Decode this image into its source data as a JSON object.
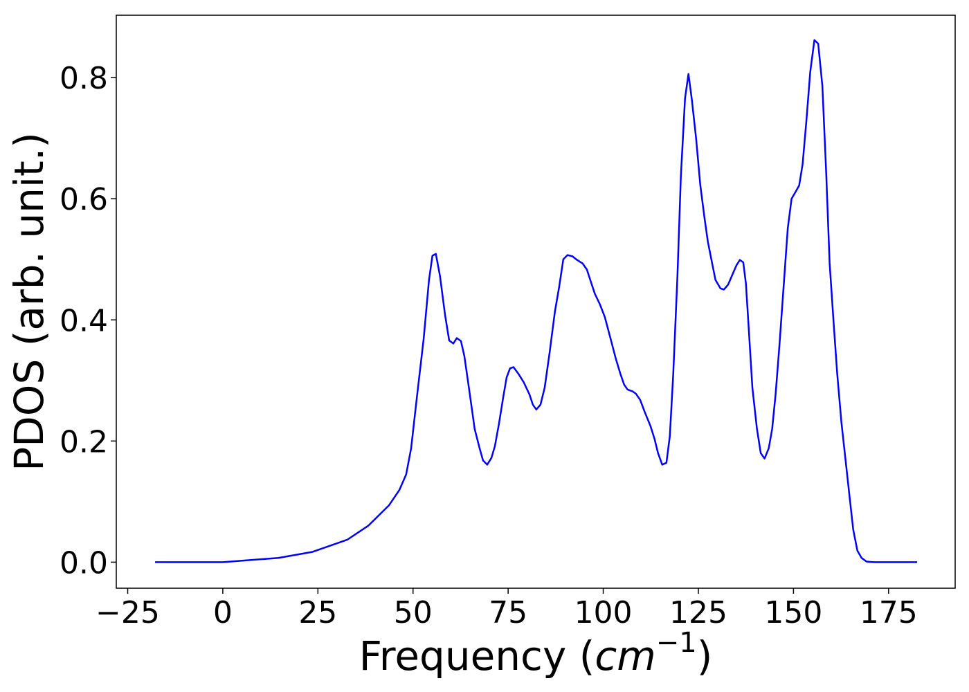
{
  "chart_data": {
    "type": "line",
    "xlabel": [
      "Frequency (",
      "cm",
      "−1",
      ")"
    ],
    "ylabel": "PDOS (arb. unit.)",
    "x": [
      -17.8,
      0,
      14.6,
      23.6,
      32.7,
      38.2,
      43.7,
      46.4,
      48.2,
      49.5,
      50.9,
      52.8,
      54.2,
      55.1,
      56.0,
      57.1,
      58.4,
      59.5,
      60.6,
      61.5,
      62.6,
      63.5,
      64.8,
      66.2,
      67.5,
      68.4,
      69.5,
      70.6,
      71.5,
      72.6,
      73.7,
      74.6,
      75.5,
      76.4,
      77.7,
      79.1,
      80.6,
      81.5,
      82.4,
      83.5,
      84.6,
      85.9,
      87.3,
      88.4,
      89.5,
      90.6,
      91.9,
      93.1,
      94.6,
      95.7,
      96.9,
      97.8,
      99.1,
      100.4,
      101.8,
      103.3,
      104.5,
      105.5,
      106.4,
      107.7,
      108.6,
      109.7,
      110.9,
      112.4,
      113.5,
      114.4,
      115.5,
      116.6,
      117.5,
      118.4,
      119.5,
      120.4,
      121.5,
      122.4,
      123.3,
      124.4,
      125.5,
      126.6,
      127.5,
      128.6,
      129.5,
      130.8,
      131.7,
      132.8,
      133.9,
      135.0,
      135.9,
      136.8,
      137.5,
      138.3,
      139.2,
      140.4,
      141.4,
      142.4,
      143.5,
      144.4,
      145.3,
      146.3,
      147.4,
      148.5,
      149.5,
      150.6,
      151.5,
      152.4,
      153.4,
      154.4,
      155.5,
      156.5,
      157.6,
      158.6,
      159.5,
      160.6,
      161.5,
      162.6,
      163.7,
      164.8,
      165.7,
      166.8,
      167.9,
      169.2,
      171.0,
      182.5
    ],
    "series": [
      {
        "name": "PDOS",
        "color": "#0000ff",
        "values": [
          0,
          0,
          0.007,
          0.017,
          0.037,
          0.06,
          0.094,
          0.119,
          0.145,
          0.188,
          0.266,
          0.369,
          0.466,
          0.506,
          0.509,
          0.472,
          0.409,
          0.366,
          0.361,
          0.37,
          0.365,
          0.34,
          0.283,
          0.22,
          0.188,
          0.168,
          0.161,
          0.172,
          0.191,
          0.229,
          0.272,
          0.305,
          0.32,
          0.322,
          0.311,
          0.297,
          0.277,
          0.26,
          0.252,
          0.26,
          0.288,
          0.346,
          0.414,
          0.454,
          0.5,
          0.507,
          0.505,
          0.499,
          0.493,
          0.483,
          0.46,
          0.443,
          0.426,
          0.405,
          0.372,
          0.336,
          0.311,
          0.293,
          0.285,
          0.282,
          0.278,
          0.268,
          0.248,
          0.225,
          0.203,
          0.18,
          0.161,
          0.164,
          0.208,
          0.311,
          0.472,
          0.637,
          0.766,
          0.806,
          0.763,
          0.7,
          0.623,
          0.569,
          0.529,
          0.494,
          0.466,
          0.452,
          0.45,
          0.458,
          0.474,
          0.49,
          0.499,
          0.495,
          0.46,
          0.38,
          0.288,
          0.22,
          0.18,
          0.171,
          0.188,
          0.22,
          0.277,
          0.357,
          0.454,
          0.551,
          0.6,
          0.612,
          0.622,
          0.657,
          0.729,
          0.809,
          0.862,
          0.856,
          0.786,
          0.643,
          0.494,
          0.391,
          0.311,
          0.231,
          0.168,
          0.105,
          0.054,
          0.019,
          0.007,
          0.001,
          0,
          0
        ]
      }
    ],
    "xlim": [
      -28.0,
      192.5
    ],
    "ylim": [
      -0.043,
      0.903
    ],
    "xticks": [
      {
        "value": -25,
        "label": "−25"
      },
      0,
      25,
      50,
      75,
      100,
      125,
      150,
      175
    ],
    "yticks": [
      {
        "value": 0,
        "label": "0.0"
      },
      0.2,
      0.4,
      0.6,
      0.8
    ]
  }
}
